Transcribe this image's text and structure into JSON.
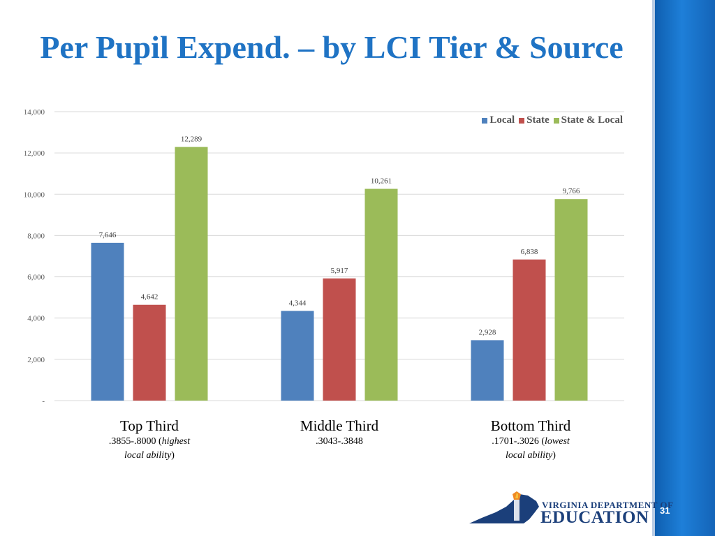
{
  "slide": {
    "title": "Per Pupil Expend. – by LCI Tier & Source",
    "page_number": "31"
  },
  "logo": {
    "line1": "VIRGINIA DEPARTMENT OF",
    "line2": "EDUCATION"
  },
  "colors": {
    "title": "#1f73c4",
    "local": "#4f81bd",
    "state": "#c0504d",
    "state_local": "#9bbb59"
  },
  "categories": [
    {
      "name": "Top Third",
      "range": ".3855-.8000 (",
      "range_italic": "highest",
      "note_italic": "local ability",
      "note_end": ")"
    },
    {
      "name": "Middle Third",
      "range": ".3043-.3848",
      "range_italic": "",
      "note_italic": "",
      "note_end": ""
    },
    {
      "name": "Bottom Third",
      "range": ".1701-.3026 (",
      "range_italic": "lowest",
      "note_italic": "local ability",
      "note_end": ")"
    }
  ],
  "chart_data": {
    "type": "bar",
    "title": "Per Pupil Expend. – by LCI Tier & Source",
    "categories": [
      "Top Third",
      "Middle Third",
      "Bottom Third"
    ],
    "series": [
      {
        "name": "Local",
        "values": [
          7646,
          4344,
          2928
        ],
        "labels": [
          "7,646",
          "4,344",
          "2,928"
        ]
      },
      {
        "name": "State",
        "values": [
          4642,
          5917,
          6838
        ],
        "labels": [
          "4,642",
          "5,917",
          "6,838"
        ]
      },
      {
        "name": "State & Local",
        "values": [
          12289,
          10261,
          9766
        ],
        "labels": [
          "12,289",
          "10,261",
          "9,766"
        ]
      }
    ],
    "yticks": [
      0,
      2000,
      4000,
      6000,
      8000,
      10000,
      12000,
      14000
    ],
    "ytick_labels": [
      "-",
      "2,000",
      "4,000",
      "6,000",
      "8,000",
      "10,000",
      "12,000",
      "14,000"
    ],
    "ylim": [
      0,
      14000
    ],
    "legend_position": "top-right",
    "grid": true
  }
}
